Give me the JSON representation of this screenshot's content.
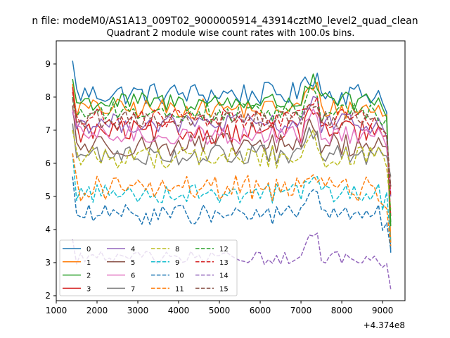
{
  "figure": {
    "suptitle": "n file: modeM0/AS1A13_009T02_9000005914_43914cztM0_level2_quad_clean",
    "offset_text": "+4.374e8"
  },
  "chart_data": {
    "type": "line",
    "title": "Quadrant 2 module wise count rates with 100.0s bins.",
    "xlabel": "",
    "ylabel": "",
    "xlim": [
      1000,
      9550
    ],
    "ylim": [
      1.85,
      9.7
    ],
    "x_offset": 437400000,
    "x_start": 1400,
    "x_step": 100,
    "x_end": 9200,
    "xticks": [
      1000,
      2000,
      3000,
      4000,
      5000,
      6000,
      7000,
      8000,
      9000
    ],
    "yticks": [
      2,
      3,
      4,
      5,
      6,
      7,
      8,
      9
    ],
    "grid": false,
    "legend": {
      "location": "lower-left",
      "ncol": 4
    },
    "series": [
      {
        "name": "0",
        "color": "#1f77b4",
        "style": "solid",
        "mean": 8.1,
        "amp": 0.35,
        "start": 9.1,
        "end": 3.3
      },
      {
        "name": "1",
        "color": "#ff7f0e",
        "style": "solid",
        "mean": 7.65,
        "amp": 0.3,
        "start": 8.4,
        "end": 3.6
      },
      {
        "name": "2",
        "color": "#2ca02c",
        "style": "solid",
        "mean": 7.85,
        "amp": 0.3,
        "start": 8.55,
        "end": 4.1
      },
      {
        "name": "3",
        "color": "#d62728",
        "style": "solid",
        "mean": 6.95,
        "amp": 0.35,
        "start": 8.3,
        "end": 4.4
      },
      {
        "name": "4",
        "color": "#9467bd",
        "style": "solid",
        "mean": 7.2,
        "amp": 0.3,
        "start": 7.55,
        "end": 5.0
      },
      {
        "name": "5",
        "color": "#8c564b",
        "style": "solid",
        "mean": 6.55,
        "amp": 0.35,
        "start": 7.75,
        "end": 5.3
      },
      {
        "name": "6",
        "color": "#e377c2",
        "style": "solid",
        "mean": 6.85,
        "amp": 0.3,
        "start": 7.6,
        "end": 5.1
      },
      {
        "name": "7",
        "color": "#7f7f7f",
        "style": "solid",
        "mean": 6.25,
        "amp": 0.3,
        "start": 7.2,
        "end": 5.6
      },
      {
        "name": "8",
        "color": "#bcbd22",
        "style": "dashed",
        "mean": 6.2,
        "amp": 0.35,
        "start": 7.0,
        "end": 4.6
      },
      {
        "name": "9",
        "color": "#17becf",
        "style": "dashed",
        "mean": 5.1,
        "amp": 0.3,
        "start": 6.3,
        "end": 3.6
      },
      {
        "name": "10",
        "color": "#1f77b4",
        "style": "dashed",
        "mean": 4.45,
        "amp": 0.3,
        "start": 5.6,
        "end": 3.4
      },
      {
        "name": "11",
        "color": "#ff7f0e",
        "style": "dashed",
        "mean": 5.25,
        "amp": 0.4,
        "start": 6.3,
        "end": 3.5
      },
      {
        "name": "12",
        "color": "#2ca02c",
        "style": "dashed",
        "mean": 7.55,
        "amp": 0.3,
        "start": 8.0,
        "end": 4.2
      },
      {
        "name": "13",
        "color": "#d62728",
        "style": "dashed",
        "mean": 7.35,
        "amp": 0.3,
        "start": 8.15,
        "end": 5.0
      },
      {
        "name": "14",
        "color": "#9467bd",
        "style": "dashed",
        "mean": 3.15,
        "amp": 0.2,
        "start": 3.7,
        "end": 2.2
      },
      {
        "name": "15",
        "color": "#8c564b",
        "style": "dashed",
        "mean": 7.3,
        "amp": 0.3,
        "start": 7.95,
        "end": 5.3
      }
    ]
  }
}
